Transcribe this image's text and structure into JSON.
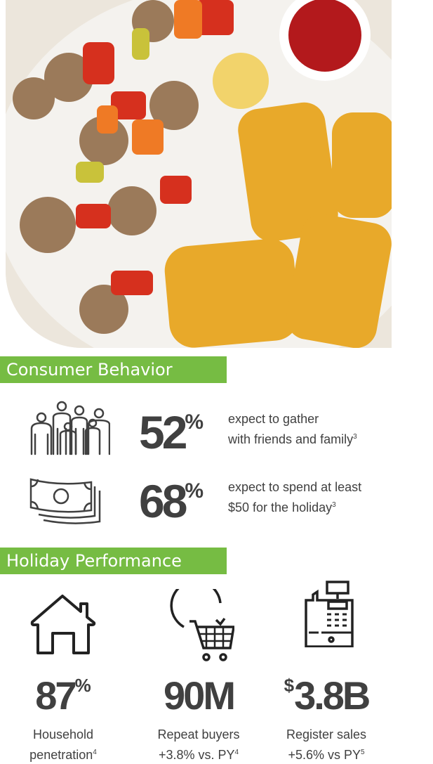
{
  "consumer_behavior": {
    "title": "Consumer Behavior",
    "stats": [
      {
        "icon": "family-icon",
        "value": "52",
        "unit": "%",
        "line1": "expect to gather",
        "line2": "with friends and family",
        "footnote": "3"
      },
      {
        "icon": "money-icon",
        "value": "68",
        "unit": "%",
        "line1": "expect to spend at least",
        "line2": "$50 for the holiday",
        "footnote": "3"
      }
    ]
  },
  "holiday_performance": {
    "title": "Holiday Performance",
    "stats": [
      {
        "icon": "house-icon",
        "prefix": "",
        "value": "87",
        "unit": "%",
        "line1": "Household",
        "line2": "penetration",
        "footnote": "4"
      },
      {
        "icon": "repeat-cart-icon",
        "prefix": "",
        "value": "90M",
        "unit": "",
        "line1": "Repeat buyers",
        "line2": "+3.8% vs. PY",
        "footnote": "4"
      },
      {
        "icon": "cash-register-icon",
        "prefix": "$",
        "value": "3.8B",
        "unit": "",
        "line1": "Register sales",
        "line2": "+5.6% vs PY",
        "footnote": "5"
      }
    ]
  },
  "colors": {
    "accent": "#76bc43",
    "text": "#404040"
  }
}
